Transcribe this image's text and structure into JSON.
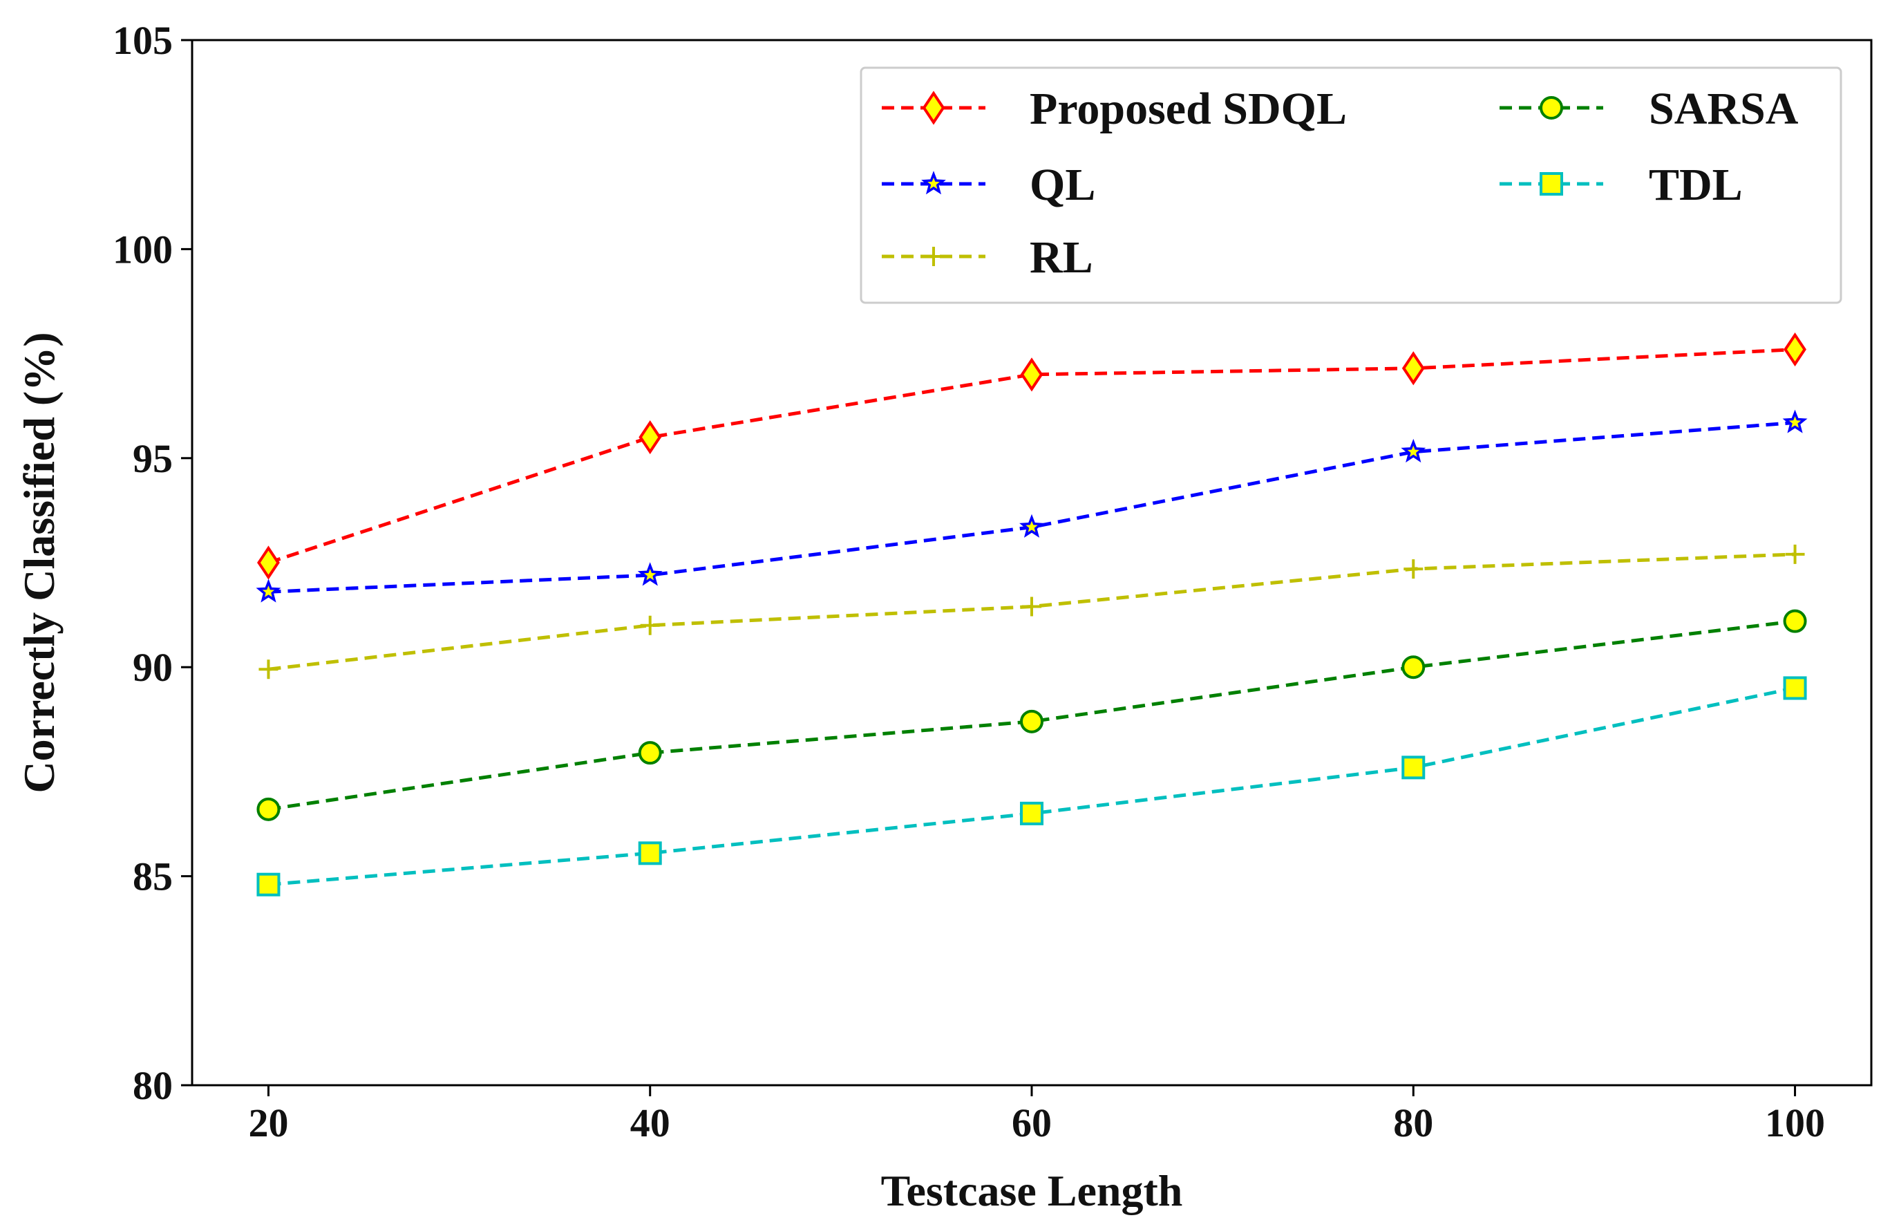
{
  "chart_data": {
    "type": "line",
    "title": "",
    "xlabel": "Testcase Length",
    "ylabel": "Correctly Classified (%)",
    "x": [
      20,
      40,
      60,
      80,
      100
    ],
    "xticks": [
      "20",
      "40",
      "60",
      "80",
      "100"
    ],
    "xlim": [
      16,
      104
    ],
    "ylim": [
      80,
      105
    ],
    "yticks": [
      "80",
      "85",
      "90",
      "95",
      "100",
      "105"
    ],
    "grid": false,
    "legend_position": "top-right",
    "series": [
      {
        "name": "Proposed SDQL",
        "values": [
          92.5,
          95.5,
          97.0,
          97.15,
          97.6
        ],
        "color": "#ff0000",
        "marker": "diamond",
        "marker_fill": "#ffff00",
        "marker_edge": "#ff0000"
      },
      {
        "name": "QL",
        "values": [
          91.8,
          92.2,
          93.35,
          95.15,
          95.85
        ],
        "color": "#0000ff",
        "marker": "star",
        "marker_fill": "#ffff00",
        "marker_edge": "#0000ff"
      },
      {
        "name": "RL",
        "values": [
          89.95,
          91.0,
          91.45,
          92.35,
          92.7
        ],
        "color": "#bfbf00",
        "marker": "plus",
        "marker_fill": "none",
        "marker_edge": "#bfbf00"
      },
      {
        "name": "SARSA",
        "values": [
          86.6,
          87.95,
          88.7,
          90.0,
          91.1
        ],
        "color": "#008000",
        "marker": "circle",
        "marker_fill": "#ffff00",
        "marker_edge": "#008000"
      },
      {
        "name": "TDL",
        "values": [
          84.8,
          85.55,
          86.5,
          87.6,
          89.5
        ],
        "color": "#00bfbf",
        "marker": "square",
        "marker_fill": "#ffff00",
        "marker_edge": "#00bfbf"
      }
    ]
  }
}
